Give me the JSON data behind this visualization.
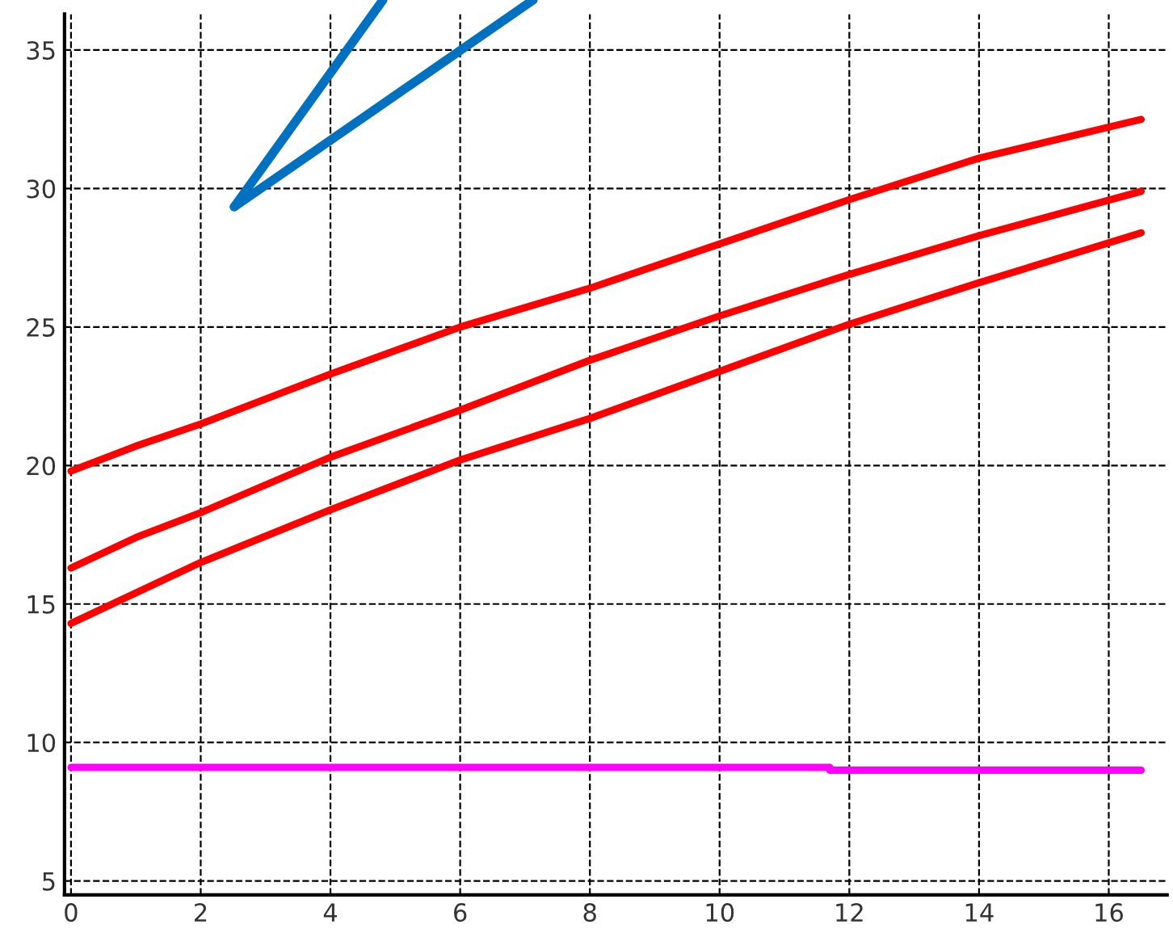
{
  "chart_data": {
    "type": "line",
    "x": [
      0,
      1,
      2,
      4,
      6,
      8,
      10,
      12,
      14,
      16.5
    ],
    "series": [
      {
        "color": "#ff0000",
        "values": [
          19.8,
          20.7,
          21.5,
          23.3,
          25.0,
          26.4,
          28.0,
          29.6,
          31.1,
          32.5
        ]
      },
      {
        "color": "#ff0000",
        "values": [
          16.3,
          17.4,
          18.3,
          20.3,
          22.0,
          23.8,
          25.4,
          26.9,
          28.3,
          29.9
        ]
      },
      {
        "color": "#ff0000",
        "values": [
          14.3,
          15.4,
          16.5,
          18.4,
          20.2,
          21.7,
          23.4,
          25.1,
          26.6,
          28.4
        ]
      },
      {
        "color": "#ff00ff",
        "x": [
          0,
          11.7,
          11.7,
          16.5
        ],
        "values": [
          9.1,
          9.1,
          9.0,
          9.0
        ]
      }
    ],
    "xlim": [
      -0.1,
      16.9
    ],
    "ylim": [
      4.5,
      36.3
    ],
    "xticks": [
      0,
      2,
      4,
      6,
      8,
      10,
      12,
      14,
      16
    ],
    "yticks": [
      5,
      10,
      15,
      20,
      25,
      30,
      35
    ],
    "grid": true,
    "line_style": "solid",
    "marker": "none"
  }
}
